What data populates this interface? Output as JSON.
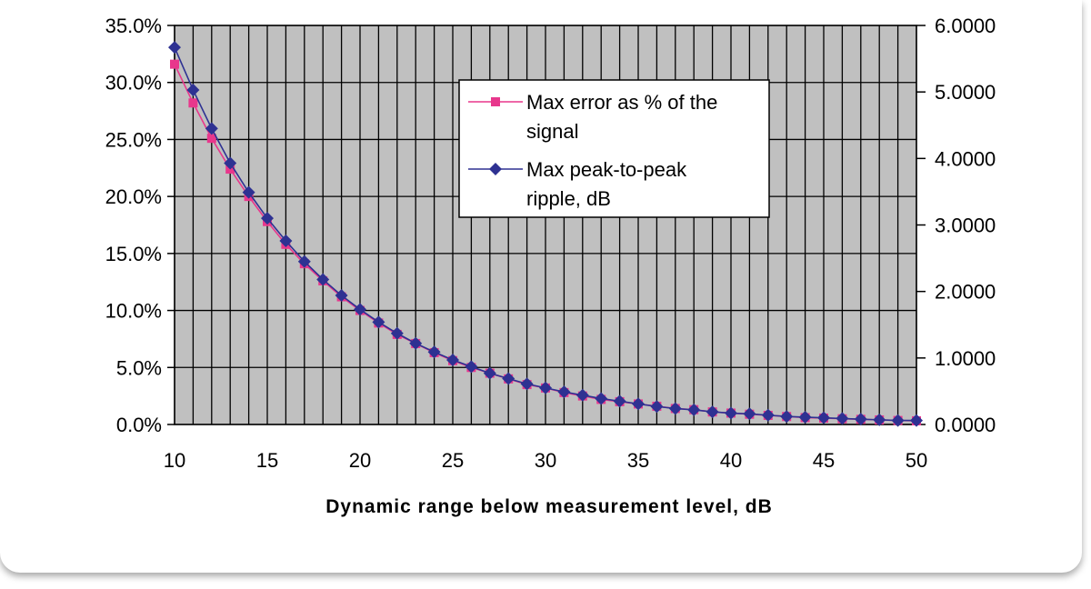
{
  "chart_data": {
    "type": "line",
    "xlabel": "Dynamic range below measurement level, dB",
    "ylabel_left": "",
    "ylabel_right": "",
    "x": [
      10,
      11,
      12,
      13,
      14,
      15,
      16,
      17,
      18,
      19,
      20,
      21,
      22,
      23,
      24,
      25,
      26,
      27,
      28,
      29,
      30,
      31,
      32,
      33,
      34,
      35,
      36,
      37,
      38,
      39,
      40,
      41,
      42,
      43,
      44,
      45,
      46,
      47,
      48,
      49,
      50
    ],
    "x_ticks": [
      "10",
      "15",
      "20",
      "25",
      "30",
      "35",
      "40",
      "45",
      "50"
    ],
    "xlim": [
      10,
      50
    ],
    "ylim_left": [
      0,
      35
    ],
    "ylim_right": [
      0,
      6
    ],
    "y_left_ticks": [
      "0.0%",
      "5.0%",
      "10.0%",
      "15.0%",
      "20.0%",
      "25.0%",
      "30.0%",
      "35.0%"
    ],
    "y_right_ticks": [
      "0.0000",
      "1.0000",
      "2.0000",
      "3.0000",
      "4.0000",
      "5.0000",
      "6.0000"
    ],
    "grid": true,
    "plot_background": "#c0c0c0",
    "legend_position": "upper-right inside plot",
    "series": [
      {
        "name": "Max error as % of the signal",
        "axis": "left",
        "marker": "square",
        "color": "#e8378c",
        "values": [
          31.6,
          28.2,
          25.1,
          22.4,
          20.0,
          17.8,
          15.8,
          14.1,
          12.6,
          11.2,
          10.0,
          8.9,
          7.9,
          7.1,
          6.3,
          5.6,
          5.0,
          4.5,
          4.0,
          3.5,
          3.2,
          2.8,
          2.5,
          2.2,
          2.0,
          1.8,
          1.6,
          1.4,
          1.3,
          1.1,
          1.0,
          0.9,
          0.8,
          0.7,
          0.6,
          0.56,
          0.5,
          0.45,
          0.4,
          0.35,
          0.32
        ]
      },
      {
        "name": "Max peak-to-peak ripple, dB",
        "axis": "right",
        "marker": "diamond",
        "color": "#2e3192",
        "values": [
          5.67,
          5.03,
          4.45,
          3.93,
          3.49,
          3.1,
          2.76,
          2.45,
          2.18,
          1.94,
          1.73,
          1.54,
          1.37,
          1.22,
          1.09,
          0.97,
          0.87,
          0.77,
          0.69,
          0.61,
          0.55,
          0.49,
          0.44,
          0.39,
          0.35,
          0.31,
          0.27,
          0.24,
          0.22,
          0.19,
          0.17,
          0.16,
          0.14,
          0.12,
          0.11,
          0.1,
          0.09,
          0.08,
          0.07,
          0.06,
          0.06
        ]
      }
    ]
  }
}
